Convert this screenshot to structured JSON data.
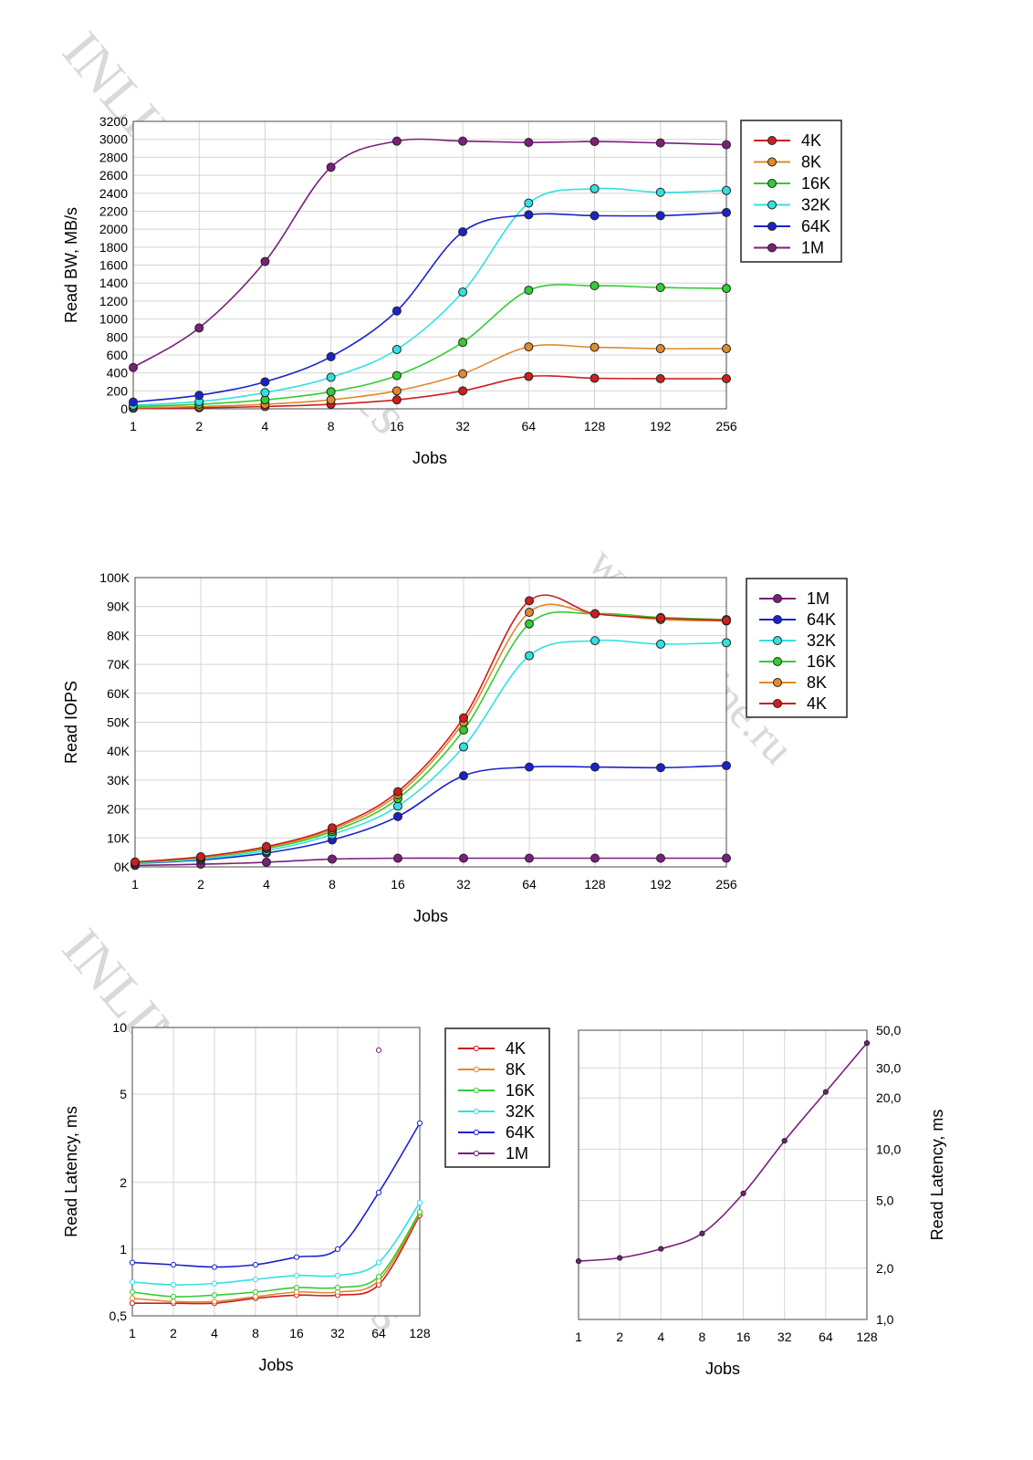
{
  "watermarks": [
    "INLINE Technologies",
    "www.in-line.ru",
    "INLINE Technologies"
  ],
  "colors": {
    "4K": "#cc1f1f",
    "8K": "#e08a2c",
    "16K": "#33cc33",
    "32K": "#33e0e0",
    "64K": "#1a22cc",
    "1M": "#7a1f7a"
  },
  "chart_data": [
    {
      "id": "bw",
      "type": "line",
      "title": "",
      "xlabel": "Jobs",
      "ylabel": "Read BW, MB/s",
      "categories": [
        "1",
        "2",
        "4",
        "8",
        "16",
        "32",
        "64",
        "128",
        "192",
        "256"
      ],
      "ylim": [
        0,
        3200
      ],
      "yticks": [
        "0",
        "200",
        "400",
        "600",
        "800",
        "1000",
        "1200",
        "1400",
        "1600",
        "1800",
        "2000",
        "2200",
        "2400",
        "2600",
        "2800",
        "3000",
        "3200"
      ],
      "legend": "right",
      "series": [
        {
          "name": "4K",
          "values": [
            6,
            12,
            25,
            50,
            100,
            200,
            360,
            340,
            335,
            335
          ]
        },
        {
          "name": "8K",
          "values": [
            12,
            25,
            50,
            100,
            200,
            390,
            690,
            685,
            670,
            670
          ]
        },
        {
          "name": "16K",
          "values": [
            25,
            50,
            100,
            190,
            370,
            740,
            1320,
            1370,
            1350,
            1340
          ]
        },
        {
          "name": "32K",
          "values": [
            40,
            80,
            180,
            350,
            660,
            1300,
            2290,
            2450,
            2410,
            2430
          ]
        },
        {
          "name": "64K",
          "values": [
            75,
            150,
            300,
            580,
            1090,
            1970,
            2160,
            2150,
            2150,
            2185
          ]
        },
        {
          "name": "1M",
          "values": [
            460,
            900,
            1640,
            2690,
            2980,
            2980,
            2965,
            2975,
            2960,
            2940
          ]
        }
      ]
    },
    {
      "id": "iops",
      "type": "line",
      "title": "",
      "xlabel": "Jobs",
      "ylabel": "Read IOPS",
      "categories": [
        "1",
        "2",
        "4",
        "8",
        "16",
        "32",
        "64",
        "128",
        "192",
        "256"
      ],
      "ylim": [
        0,
        100000
      ],
      "yticks": [
        "0K",
        "10K",
        "20K",
        "30K",
        "40K",
        "50K",
        "60K",
        "70K",
        "80K",
        "90K",
        "100K"
      ],
      "legend": "right",
      "series": [
        {
          "name": "1M",
          "values": [
            500,
            900,
            1600,
            2700,
            3000,
            3000,
            3000,
            3000,
            3000,
            3000
          ]
        },
        {
          "name": "64K",
          "values": [
            1200,
            2400,
            4800,
            9300,
            17400,
            31500,
            34500,
            34500,
            34300,
            35000
          ]
        },
        {
          "name": "32K",
          "values": [
            1300,
            2700,
            5600,
            11200,
            21000,
            41500,
            73000,
            78200,
            77000,
            77500
          ]
        },
        {
          "name": "16K",
          "values": [
            1500,
            3100,
            6300,
            12200,
            23600,
            47300,
            84000,
            87500,
            86200,
            85500
          ]
        },
        {
          "name": "8K",
          "values": [
            1600,
            3300,
            6700,
            12900,
            25000,
            50000,
            88000,
            87500,
            85500,
            85000
          ]
        },
        {
          "name": "4K",
          "values": [
            1700,
            3500,
            7000,
            13500,
            26000,
            51500,
            92000,
            87500,
            86000,
            85200
          ]
        }
      ]
    },
    {
      "id": "latency-small",
      "type": "line",
      "title": "",
      "xlabel": "Jobs",
      "ylabel": "Read Latency, ms",
      "yscale": "log",
      "categories": [
        "1",
        "2",
        "4",
        "8",
        "16",
        "32",
        "64",
        "128"
      ],
      "ylim": [
        0.5,
        10
      ],
      "yticks": [
        {
          "value": 0.5,
          "label": "0,5"
        },
        {
          "value": 1,
          "label": "1"
        },
        {
          "value": 2,
          "label": "2"
        },
        {
          "value": 5,
          "label": "5"
        },
        {
          "value": 10,
          "label": "10"
        }
      ],
      "legend": "right",
      "series": [
        {
          "name": "4K",
          "values": [
            0.57,
            0.57,
            0.57,
            0.6,
            0.62,
            0.62,
            0.69,
            1.42
          ]
        },
        {
          "name": "8K",
          "values": [
            0.6,
            0.58,
            0.58,
            0.61,
            0.64,
            0.64,
            0.72,
            1.45
          ]
        },
        {
          "name": "16K",
          "values": [
            0.64,
            0.61,
            0.62,
            0.64,
            0.67,
            0.67,
            0.75,
            1.47
          ]
        },
        {
          "name": "32K",
          "values": [
            0.71,
            0.69,
            0.7,
            0.73,
            0.76,
            0.76,
            0.87,
            1.62
          ]
        },
        {
          "name": "64K",
          "values": [
            0.87,
            0.85,
            0.83,
            0.85,
            0.92,
            1.0,
            1.8,
            3.7
          ]
        },
        {
          "name": "1M",
          "values": [
            null,
            null,
            null,
            null,
            null,
            null,
            7.9,
            null
          ]
        }
      ]
    },
    {
      "id": "latency-1m",
      "type": "line",
      "title": "",
      "xlabel": "Jobs",
      "ylabel": "Read Latency, ms",
      "yscale": "log",
      "categories": [
        "1",
        "2",
        "4",
        "8",
        "16",
        "32",
        "64",
        "128"
      ],
      "ylim": [
        1,
        50
      ],
      "yticks": [
        {
          "value": 1,
          "label": "1,0"
        },
        {
          "value": 2,
          "label": "2,0"
        },
        {
          "value": 5,
          "label": "5,0"
        },
        {
          "value": 10,
          "label": "10,0"
        },
        {
          "value": 20,
          "label": "20,0"
        },
        {
          "value": 30,
          "label": "30,0"
        },
        {
          "value": 50,
          "label": "50,0"
        }
      ],
      "legend": "none",
      "series": [
        {
          "name": "1M",
          "values": [
            2.2,
            2.3,
            2.6,
            3.2,
            5.5,
            11.2,
            21.7,
            42.0
          ]
        }
      ]
    }
  ]
}
